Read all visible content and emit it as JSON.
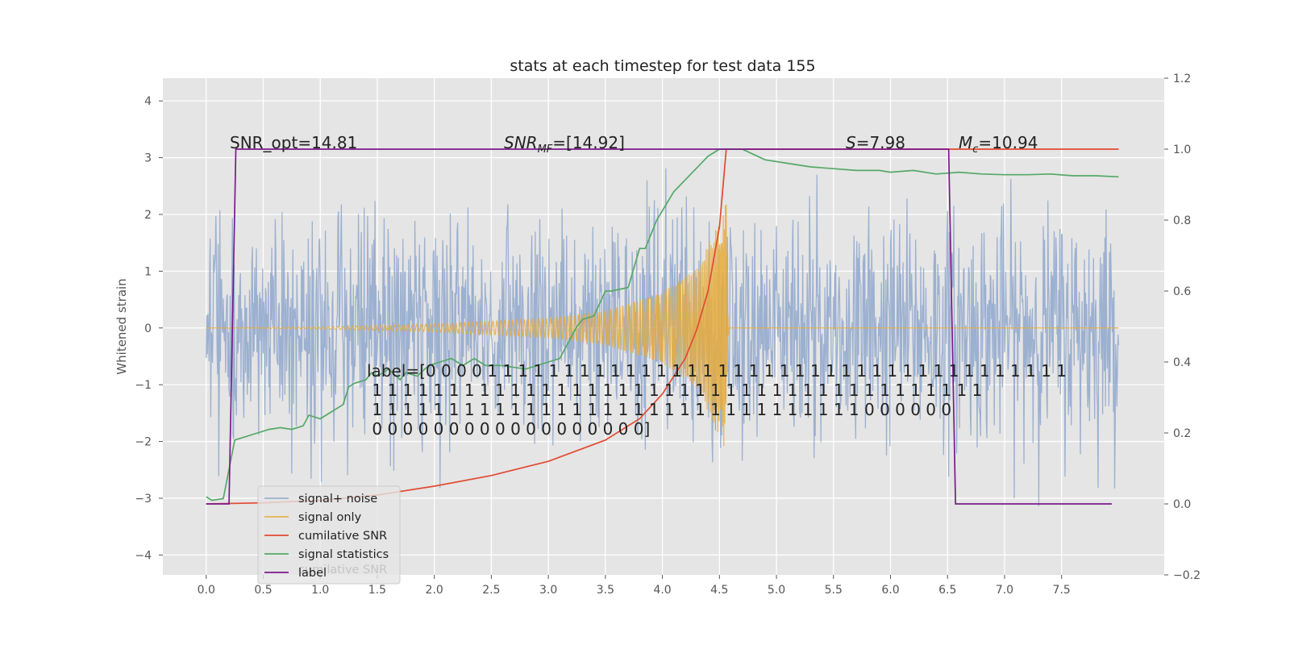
{
  "chart_data": {
    "type": "line",
    "title": "stats at each timestep for test data 155",
    "ylabel": "Whitened strain",
    "xlim": [
      -0.38,
      8.4
    ],
    "ylim": [
      -4.35,
      4.4
    ],
    "y2lim": [
      -0.2,
      1.2
    ],
    "grid": true,
    "x_ticks": [
      "0.0",
      "0.5",
      "1.0",
      "1.5",
      "2.0",
      "2.5",
      "3.0",
      "3.5",
      "4.0",
      "4.5",
      "5.0",
      "5.5",
      "6.0",
      "6.5",
      "7.0",
      "7.5"
    ],
    "y_ticks": [
      "−4",
      "−3",
      "−2",
      "−1",
      "0",
      "1",
      "2",
      "3",
      "4"
    ],
    "y2_ticks": [
      "−0.2",
      "0.0",
      "0.2",
      "0.4",
      "0.6",
      "0.8",
      "1.0",
      "1.2"
    ],
    "annotations": {
      "snr_opt": "SNR_opt=14.81",
      "snr_mf_main": "SNR",
      "snr_mf_sub": "MF",
      "snr_mf_rest": "=[14.92]",
      "s_main": "S",
      "s_rest": "=7.98",
      "mc_main": "M",
      "mc_sub": "c",
      "mc_rest": "=10.94",
      "label_lines": [
        "label=[0 0 0 0 1 1 1 1 1 1 1 1 1 1 1 1 1 1 1 1 1 1 1 1 1 1 1 1 1 1 1 1 1 1 1 1 1 1 1 1 1 1",
        " 1 1 1 1 1 1 1 1 1 1 1 1 1 1 1 1 1 1 1 1 1 1 1 1 1 1 1 1 1 1 1 1 1 1 1 1 1 1 1 1",
        " 1 1 1 1 1 1 1 1 1 1 1 1 1 1 1 1 1 1 1 1 1 1 1 1 1 1 1 1 1 1 1 1 0 0 0 0 0 0",
        " 0 0 0 0 0 0 0 0 0 0 0 0 0 0 0 0 0 0]"
      ]
    },
    "series": [
      {
        "name": "signal+ noise",
        "color": "#8fa7cc",
        "axis": "left",
        "x_range": [
          0.0,
          8.0
        ],
        "envelope": {
          "typical": 1.0,
          "max_abs": 4.0,
          "min": -3.9
        }
      },
      {
        "name": "signal only",
        "color": "#e6ac3c",
        "axis": "left",
        "x_range": [
          0.0,
          8.0
        ],
        "envelope_points": [
          [
            0.0,
            0.0
          ],
          [
            1.0,
            0.02
          ],
          [
            2.0,
            0.07
          ],
          [
            3.0,
            0.17
          ],
          [
            3.5,
            0.3
          ],
          [
            4.0,
            0.62
          ],
          [
            4.3,
            1.05
          ],
          [
            4.5,
            1.9
          ],
          [
            4.56,
            2.2
          ],
          [
            4.58,
            0.0
          ],
          [
            8.0,
            0.0
          ]
        ]
      },
      {
        "name": "cumilative SNR",
        "color": "#e24a33",
        "axis": "right",
        "points": [
          [
            0.0,
            0.0
          ],
          [
            0.5,
            0.003
          ],
          [
            1.0,
            0.01
          ],
          [
            1.5,
            0.025
          ],
          [
            2.0,
            0.05
          ],
          [
            2.5,
            0.08
          ],
          [
            3.0,
            0.12
          ],
          [
            3.5,
            0.18
          ],
          [
            3.8,
            0.24
          ],
          [
            4.0,
            0.31
          ],
          [
            4.2,
            0.41
          ],
          [
            4.3,
            0.49
          ],
          [
            4.4,
            0.6
          ],
          [
            4.5,
            0.78
          ],
          [
            4.56,
            1.0
          ],
          [
            8.0,
            1.0
          ]
        ]
      },
      {
        "name": "signal statistics",
        "color": "#55a868",
        "axis": "right",
        "points": [
          [
            0.0,
            0.02
          ],
          [
            0.05,
            0.01
          ],
          [
            0.15,
            0.015
          ],
          [
            0.25,
            0.18
          ],
          [
            0.35,
            0.19
          ],
          [
            0.45,
            0.2
          ],
          [
            0.55,
            0.21
          ],
          [
            0.65,
            0.215
          ],
          [
            0.75,
            0.21
          ],
          [
            0.85,
            0.22
          ],
          [
            0.9,
            0.25
          ],
          [
            1.0,
            0.24
          ],
          [
            1.1,
            0.26
          ],
          [
            1.2,
            0.28
          ],
          [
            1.25,
            0.33
          ],
          [
            1.3,
            0.34
          ],
          [
            1.4,
            0.35
          ],
          [
            1.45,
            0.37
          ],
          [
            1.5,
            0.36
          ],
          [
            1.6,
            0.38
          ],
          [
            1.7,
            0.35
          ],
          [
            1.75,
            0.37
          ],
          [
            1.85,
            0.36
          ],
          [
            1.95,
            0.39
          ],
          [
            2.05,
            0.4
          ],
          [
            2.15,
            0.41
          ],
          [
            2.25,
            0.39
          ],
          [
            2.35,
            0.41
          ],
          [
            2.45,
            0.39
          ],
          [
            2.6,
            0.39
          ],
          [
            2.8,
            0.38
          ],
          [
            3.0,
            0.4
          ],
          [
            3.1,
            0.41
          ],
          [
            3.2,
            0.47
          ],
          [
            3.25,
            0.5
          ],
          [
            3.3,
            0.52
          ],
          [
            3.4,
            0.53
          ],
          [
            3.5,
            0.6
          ],
          [
            3.55,
            0.6
          ],
          [
            3.7,
            0.61
          ],
          [
            3.8,
            0.72
          ],
          [
            3.85,
            0.72
          ],
          [
            3.95,
            0.8
          ],
          [
            4.1,
            0.88
          ],
          [
            4.25,
            0.93
          ],
          [
            4.4,
            0.98
          ],
          [
            4.5,
            1.0
          ],
          [
            4.55,
            1.0
          ],
          [
            4.7,
            1.0
          ],
          [
            4.9,
            0.97
          ],
          [
            5.1,
            0.96
          ],
          [
            5.3,
            0.95
          ],
          [
            5.5,
            0.945
          ],
          [
            5.7,
            0.94
          ],
          [
            5.9,
            0.94
          ],
          [
            6.0,
            0.935
          ],
          [
            6.2,
            0.94
          ],
          [
            6.4,
            0.93
          ],
          [
            6.6,
            0.935
          ],
          [
            6.8,
            0.93
          ],
          [
            7.0,
            0.928
          ],
          [
            7.2,
            0.928
          ],
          [
            7.4,
            0.93
          ],
          [
            7.6,
            0.925
          ],
          [
            7.8,
            0.925
          ],
          [
            8.0,
            0.922
          ]
        ]
      },
      {
        "name": "label",
        "color": "#7b1a8c",
        "axis": "right",
        "points": [
          [
            0.0,
            0.0
          ],
          [
            0.2,
            0.0
          ],
          [
            0.26,
            1.0
          ],
          [
            6.51,
            1.0
          ],
          [
            6.57,
            0.0
          ],
          [
            7.94,
            0.0
          ]
        ]
      }
    ],
    "legend": {
      "position": "lower-left",
      "entries": [
        "signal+ noise",
        "signal only",
        "cumilative SNR",
        "signal statistics",
        "label"
      ],
      "ghost_text": "cumilative SNR"
    }
  }
}
